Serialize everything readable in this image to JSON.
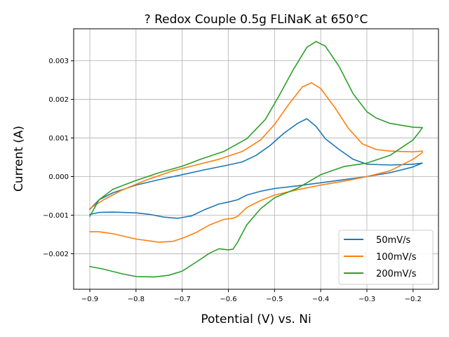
{
  "chart_data": {
    "type": "line",
    "title": "? Redox Couple 0.5g FLiNaK at 650°C",
    "xlabel": "Potential (V) vs. Ni",
    "ylabel": "Current (A)",
    "xlim": [
      -0.935,
      -0.145
    ],
    "ylim": [
      -0.00292,
      0.00383
    ],
    "xticks": [
      -0.9,
      -0.8,
      -0.7,
      -0.6,
      -0.5,
      -0.4,
      -0.3,
      -0.2
    ],
    "xtick_labels": [
      "−0.9",
      "−0.8",
      "−0.7",
      "−0.6",
      "−0.5",
      "−0.4",
      "−0.3",
      "−0.2"
    ],
    "yticks": [
      -0.002,
      -0.001,
      0.0,
      0.001,
      0.002,
      0.003
    ],
    "ytick_labels": [
      "−0.002",
      "−0.001",
      "0.000",
      "0.001",
      "0.002",
      "0.003"
    ],
    "grid": true,
    "legend_position": "bottom-right",
    "series": [
      {
        "name": "50mV/s",
        "color": "#1f77b4",
        "points": [
          [
            -0.9,
            -0.00098
          ],
          [
            -0.88,
            -0.00093
          ],
          [
            -0.85,
            -0.00092
          ],
          [
            -0.8,
            -0.00094
          ],
          [
            -0.77,
            -0.00098
          ],
          [
            -0.74,
            -0.00105
          ],
          [
            -0.71,
            -0.00108
          ],
          [
            -0.68,
            -0.00102
          ],
          [
            -0.65,
            -0.00085
          ],
          [
            -0.62,
            -0.00071
          ],
          [
            -0.6,
            -0.00066
          ],
          [
            -0.58,
            -0.0006
          ],
          [
            -0.56,
            -0.00048
          ],
          [
            -0.53,
            -0.00038
          ],
          [
            -0.5,
            -0.00031
          ],
          [
            -0.45,
            -0.00024
          ],
          [
            -0.4,
            -0.00016
          ],
          [
            -0.35,
            -8e-05
          ],
          [
            -0.3,
            0.0
          ],
          [
            -0.25,
            0.0001
          ],
          [
            -0.2,
            0.00025
          ],
          [
            -0.18,
            0.00035
          ],
          [
            -0.2,
            0.00032
          ],
          [
            -0.25,
            0.0003
          ],
          [
            -0.3,
            0.00032
          ],
          [
            -0.33,
            0.00045
          ],
          [
            -0.36,
            0.0007
          ],
          [
            -0.39,
            0.00098
          ],
          [
            -0.41,
            0.0013
          ],
          [
            -0.43,
            0.0015
          ],
          [
            -0.45,
            0.00138
          ],
          [
            -0.48,
            0.00112
          ],
          [
            -0.51,
            0.0008
          ],
          [
            -0.54,
            0.00055
          ],
          [
            -0.57,
            0.00038
          ],
          [
            -0.6,
            0.0003
          ],
          [
            -0.65,
            0.00018
          ],
          [
            -0.7,
            5e-05
          ],
          [
            -0.75,
            -8e-05
          ],
          [
            -0.8,
            -0.00022
          ],
          [
            -0.85,
            -0.00042
          ],
          [
            -0.88,
            -0.0006
          ],
          [
            -0.9,
            -0.00085
          ]
        ]
      },
      {
        "name": "100mV/s",
        "color": "#ff7f0e",
        "points": [
          [
            -0.9,
            -0.00143
          ],
          [
            -0.88,
            -0.00143
          ],
          [
            -0.85,
            -0.00148
          ],
          [
            -0.8,
            -0.00162
          ],
          [
            -0.75,
            -0.0017
          ],
          [
            -0.72,
            -0.00168
          ],
          [
            -0.7,
            -0.0016
          ],
          [
            -0.67,
            -0.00145
          ],
          [
            -0.64,
            -0.00125
          ],
          [
            -0.61,
            -0.00111
          ],
          [
            -0.59,
            -0.00108
          ],
          [
            -0.58,
            -0.00103
          ],
          [
            -0.56,
            -0.0008
          ],
          [
            -0.53,
            -0.00062
          ],
          [
            -0.5,
            -0.00048
          ],
          [
            -0.45,
            -0.00034
          ],
          [
            -0.4,
            -0.00022
          ],
          [
            -0.35,
            -0.00012
          ],
          [
            -0.3,
            0.0
          ],
          [
            -0.25,
            0.00015
          ],
          [
            -0.2,
            0.00045
          ],
          [
            -0.18,
            0.00062
          ],
          [
            -0.18,
            0.00066
          ],
          [
            -0.2,
            0.00064
          ],
          [
            -0.25,
            0.00066
          ],
          [
            -0.28,
            0.0007
          ],
          [
            -0.31,
            0.00085
          ],
          [
            -0.34,
            0.00125
          ],
          [
            -0.37,
            0.0018
          ],
          [
            -0.4,
            0.00228
          ],
          [
            -0.42,
            0.00243
          ],
          [
            -0.44,
            0.00232
          ],
          [
            -0.47,
            0.00186
          ],
          [
            -0.5,
            0.00135
          ],
          [
            -0.53,
            0.00095
          ],
          [
            -0.57,
            0.00065
          ],
          [
            -0.62,
            0.00045
          ],
          [
            -0.67,
            0.0003
          ],
          [
            -0.72,
            0.00015
          ],
          [
            -0.78,
            -0.0001
          ],
          [
            -0.83,
            -0.00035
          ],
          [
            -0.87,
            -0.0006
          ],
          [
            -0.9,
            -0.00083
          ]
        ]
      },
      {
        "name": "200mV/s",
        "color": "#2ca02c",
        "points": [
          [
            -0.9,
            -0.00233
          ],
          [
            -0.87,
            -0.0024
          ],
          [
            -0.83,
            -0.00252
          ],
          [
            -0.8,
            -0.00259
          ],
          [
            -0.76,
            -0.0026
          ],
          [
            -0.73,
            -0.00256
          ],
          [
            -0.7,
            -0.00245
          ],
          [
            -0.67,
            -0.00222
          ],
          [
            -0.64,
            -0.00198
          ],
          [
            -0.62,
            -0.00187
          ],
          [
            -0.6,
            -0.0019
          ],
          [
            -0.59,
            -0.00188
          ],
          [
            -0.58,
            -0.0017
          ],
          [
            -0.56,
            -0.00125
          ],
          [
            -0.53,
            -0.00083
          ],
          [
            -0.5,
            -0.00055
          ],
          [
            -0.45,
            -0.0003
          ],
          [
            -0.4,
            5e-05
          ],
          [
            -0.35,
            0.00026
          ],
          [
            -0.3,
            0.00035
          ],
          [
            -0.25,
            0.00055
          ],
          [
            -0.2,
            0.00095
          ],
          [
            -0.185,
            0.00118
          ],
          [
            -0.18,
            0.00127
          ],
          [
            -0.2,
            0.00128
          ],
          [
            -0.25,
            0.00138
          ],
          [
            -0.28,
            0.00152
          ],
          [
            -0.3,
            0.00168
          ],
          [
            -0.33,
            0.00215
          ],
          [
            -0.36,
            0.00285
          ],
          [
            -0.39,
            0.00338
          ],
          [
            -0.41,
            0.0035
          ],
          [
            -0.43,
            0.00335
          ],
          [
            -0.46,
            0.00276
          ],
          [
            -0.49,
            0.0021
          ],
          [
            -0.52,
            0.00148
          ],
          [
            -0.56,
            0.00098
          ],
          [
            -0.61,
            0.00065
          ],
          [
            -0.66,
            0.00045
          ],
          [
            -0.7,
            0.00027
          ],
          [
            -0.75,
            0.0001
          ],
          [
            -0.8,
            -0.0001
          ],
          [
            -0.85,
            -0.00033
          ],
          [
            -0.88,
            -0.0006
          ],
          [
            -0.9,
            -0.00103
          ]
        ]
      }
    ]
  }
}
